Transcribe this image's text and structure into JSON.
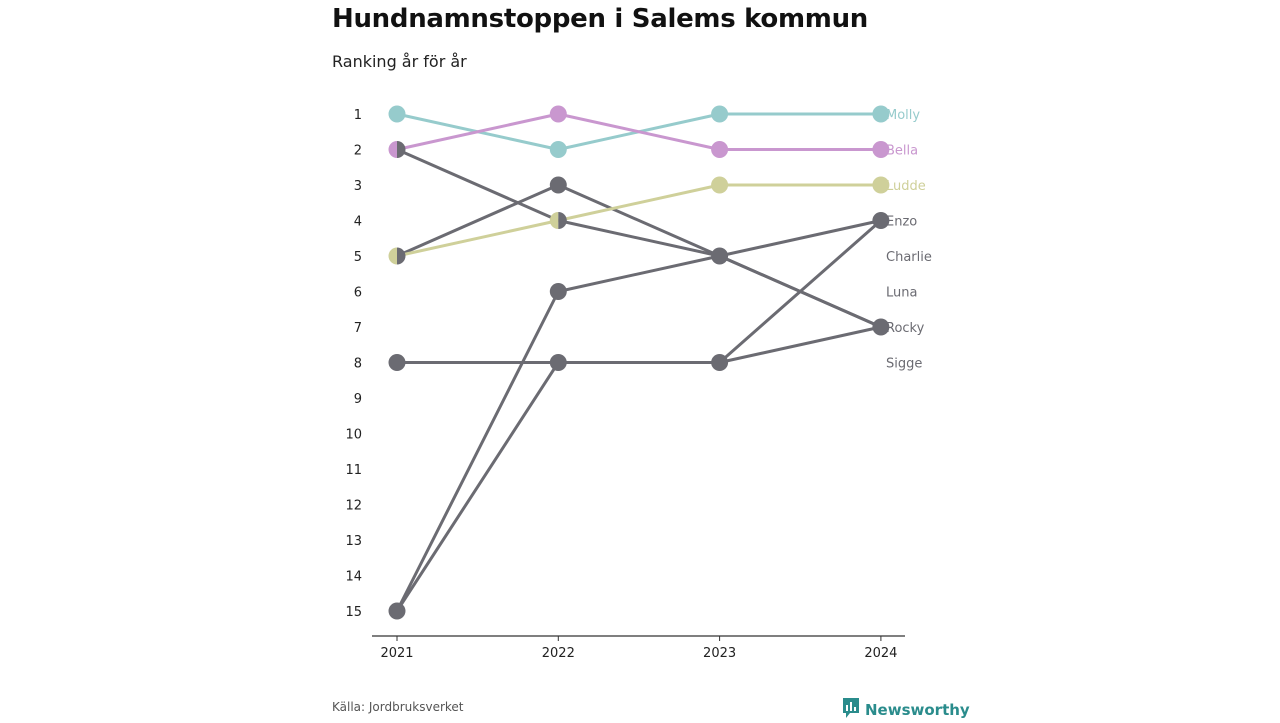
{
  "header": {
    "title": "Hundnamnstoppen i Salems kommun",
    "subtitle": "Ranking år för år"
  },
  "footer": {
    "source": "Källa: Jordbruksverket",
    "brand": "Newsworthy",
    "brand_icon": "newsworthy-logo-icon"
  },
  "colors": {
    "Molly": "#96cbcc",
    "Bella": "#c997cf",
    "Ludde": "#cfd09a",
    "other": "#6b6b72",
    "axis": "#333333"
  },
  "chart_data": {
    "type": "line",
    "title": "Hundnamnstoppen i Salems kommun",
    "subtitle": "Ranking år för år",
    "x": [
      "2021",
      "2022",
      "2023",
      "2024"
    ],
    "y_ticks": [
      "1",
      "2",
      "3",
      "4",
      "5",
      "6",
      "7",
      "8",
      "9",
      "10",
      "11",
      "12",
      "13",
      "14",
      "15"
    ],
    "ylim": [
      1,
      15
    ],
    "y_inverted": true,
    "series": [
      {
        "name": "Molly",
        "values": [
          1,
          2,
          1,
          1
        ]
      },
      {
        "name": "Bella",
        "values": [
          2,
          1,
          2,
          2
        ]
      },
      {
        "name": "Ludde",
        "values": [
          5,
          4,
          3,
          3
        ]
      },
      {
        "name": "Enzo",
        "values": [
          15,
          8,
          8,
          4
        ]
      },
      {
        "name": "Charlie",
        "values": [
          2,
          4,
          5,
          7
        ]
      },
      {
        "name": "Luna",
        "values": [
          5,
          3,
          5,
          4
        ]
      },
      {
        "name": "Rocky",
        "values": [
          15,
          6,
          5,
          7
        ]
      },
      {
        "name": "Sigge",
        "values": [
          8,
          8,
          8,
          7
        ]
      }
    ],
    "legend": [
      "Molly",
      "Bella",
      "Ludde",
      "Enzo",
      "Charlie",
      "Luna",
      "Rocky",
      "Sigge"
    ],
    "grid": false
  }
}
